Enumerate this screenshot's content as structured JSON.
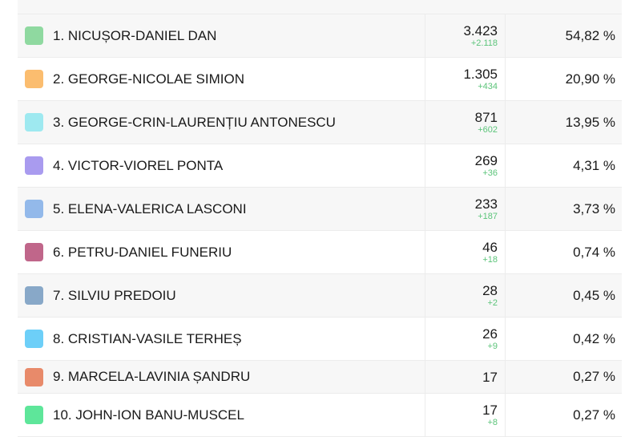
{
  "candidates": [
    {
      "name": "1. NICUȘOR-DANIEL DAN",
      "votes": "3.423",
      "delta": "+2.118",
      "percent": "54,82 %",
      "color": "#8fd9a0"
    },
    {
      "name": "2. GEORGE-NICOLAE SIMION",
      "votes": "1.305",
      "delta": "+434",
      "percent": "20,90 %",
      "color": "#fbbd6f"
    },
    {
      "name": "3. GEORGE-CRIN-LAURENȚIU ANTONESCU",
      "votes": "871",
      "delta": "+602",
      "percent": "13,95 %",
      "color": "#9ee9f0"
    },
    {
      "name": "4. VICTOR-VIOREL PONTA",
      "votes": "269",
      "delta": "+36",
      "percent": "4,31 %",
      "color": "#a99bef"
    },
    {
      "name": "5. ELENA-VALERICA LASCONI",
      "votes": "233",
      "delta": "+187",
      "percent": "3,73 %",
      "color": "#93b9ea"
    },
    {
      "name": "6. PETRU-DANIEL FUNERIU",
      "votes": "46",
      "delta": "+18",
      "percent": "0,74 %",
      "color": "#c0668a"
    },
    {
      "name": "7. SILVIU PREDOIU",
      "votes": "28",
      "delta": "+2",
      "percent": "0,45 %",
      "color": "#88a8c8"
    },
    {
      "name": "8. CRISTIAN-VASILE TERHEȘ",
      "votes": "26",
      "delta": "+9",
      "percent": "0,42 %",
      "color": "#6dcff8"
    },
    {
      "name": "9. MARCELA-LAVINIA ȘANDRU",
      "votes": "17",
      "delta": "",
      "percent": "0,27 %",
      "color": "#e88a6a"
    },
    {
      "name": "10. JOHN-ION BANU-MUSCEL",
      "votes": "17",
      "delta": "+8",
      "percent": "0,27 %",
      "color": "#5ee69a"
    }
  ]
}
